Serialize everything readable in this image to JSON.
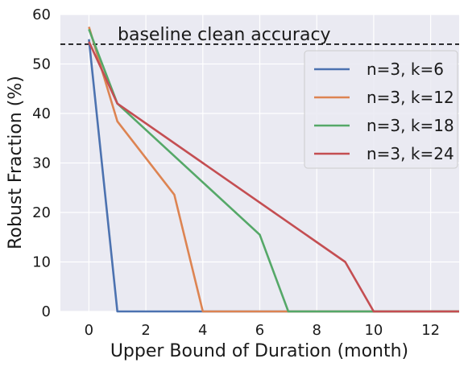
{
  "chart_data": {
    "type": "line",
    "title": "",
    "xlabel": "Upper Bound of Duration (month)",
    "ylabel": "Robust Fraction (%)",
    "xlim": [
      -1,
      13
    ],
    "ylim": [
      0,
      60
    ],
    "xticks": [
      0,
      2,
      4,
      6,
      8,
      10,
      12
    ],
    "yticks": [
      0,
      10,
      20,
      30,
      40,
      50,
      60
    ],
    "grid": true,
    "legend_position": "upper-right",
    "baseline": {
      "label": "baseline clean accuracy",
      "value": 54,
      "style": "dashed",
      "color": "#000000"
    },
    "series": [
      {
        "name": "n=3, k=6",
        "color": "#4c72b0",
        "x": [
          0,
          1,
          13
        ],
        "y": [
          55.0,
          0,
          0
        ]
      },
      {
        "name": "n=3, k=12",
        "color": "#dd8452",
        "x": [
          0,
          1,
          3,
          4,
          13
        ],
        "y": [
          57.5,
          38.4,
          23.6,
          0,
          0
        ]
      },
      {
        "name": "n=3, k=18",
        "color": "#55a868",
        "x": [
          0,
          1,
          6,
          7,
          13
        ],
        "y": [
          57.0,
          42.0,
          15.5,
          0,
          0
        ]
      },
      {
        "name": "n=3, k=24",
        "color": "#c44e52",
        "x": [
          0,
          1,
          9,
          10,
          13
        ],
        "y": [
          54.5,
          42.0,
          10.0,
          0,
          0
        ]
      }
    ]
  }
}
